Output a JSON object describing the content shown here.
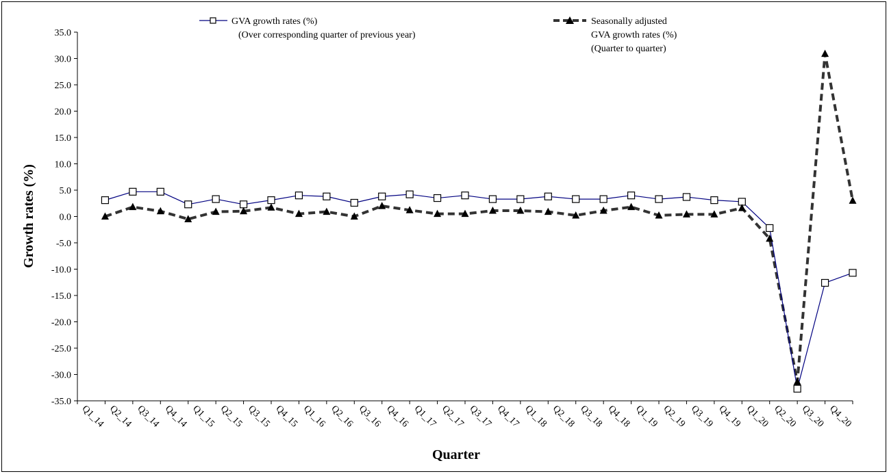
{
  "chart_data": {
    "type": "line",
    "title": "",
    "xlabel": "Quarter",
    "ylabel": "Growth rates (%)",
    "ylim": [
      -35,
      35
    ],
    "ytick_step": 5,
    "ytick_labels": [
      "35.0",
      "30.0",
      "25.0",
      "20.0",
      "15.0",
      "10.0",
      "5.0",
      "0.0",
      "-5.0",
      "-10.0",
      "-15.0",
      "-20.0",
      "-25.0",
      "-30.0",
      "-35.0"
    ],
    "categories": [
      "Q1_14",
      "Q2_14",
      "Q3_14",
      "Q4_14",
      "Q1_15",
      "Q2_15",
      "Q3_15",
      "Q4_15",
      "Q1_16",
      "Q2_16",
      "Q3_16",
      "Q4_16",
      "Q1_17",
      "Q2_17",
      "Q3_17",
      "Q4_17",
      "Q1_18",
      "Q2_18",
      "Q3_18",
      "Q4_18",
      "Q1_19",
      "Q2_19",
      "Q3_19",
      "Q4_19",
      "Q1_20",
      "Q2_20",
      "Q3_20",
      "Q4_20"
    ],
    "grid": false,
    "legend_position": "top",
    "series": [
      {
        "legend_lines": [
          "GVA growth rates (%)",
          "(Over corresponding quarter of previous year)"
        ],
        "color": "#000080",
        "marker": "open-square",
        "line_style": "solid",
        "values": [
          3.1,
          4.7,
          4.7,
          2.3,
          3.3,
          2.3,
          3.1,
          4.0,
          3.8,
          2.6,
          3.8,
          4.2,
          3.5,
          4.0,
          3.3,
          3.3,
          3.8,
          3.3,
          3.3,
          4.0,
          3.3,
          3.7,
          3.1,
          2.8,
          -2.2,
          -32.7,
          -12.6,
          -10.7
        ]
      },
      {
        "legend_lines": [
          "Seasonally adjusted",
          "GVA growth rates (%)",
          "(Quarter to quarter)"
        ],
        "color": "#333333",
        "marker": "filled-triangle",
        "line_style": "dashed",
        "values": [
          0.0,
          1.8,
          1.0,
          -0.5,
          0.9,
          1.0,
          1.7,
          0.5,
          0.9,
          0.0,
          2.0,
          1.2,
          0.5,
          0.5,
          1.1,
          1.1,
          0.9,
          0.2,
          1.1,
          1.8,
          0.2,
          0.4,
          0.4,
          1.6,
          -4.2,
          -31.4,
          30.9,
          3.0
        ]
      }
    ]
  }
}
